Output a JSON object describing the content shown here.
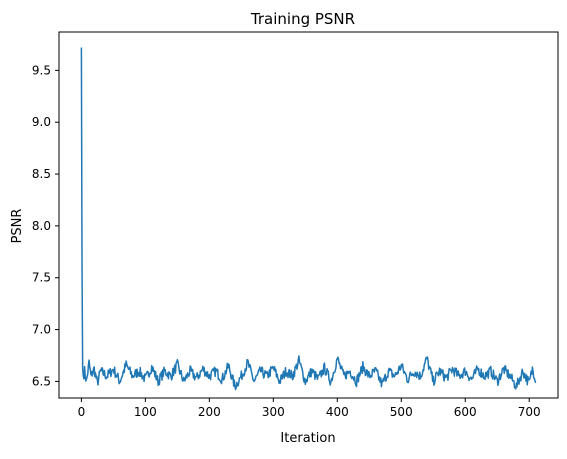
{
  "chart_data": {
    "type": "line",
    "title": "Training PSNR",
    "xlabel": "Iteration",
    "ylabel": "PSNR",
    "xlim": [
      -35,
      745
    ],
    "ylim": [
      6.34,
      9.87
    ],
    "x_ticks": [
      0,
      100,
      200,
      300,
      400,
      500,
      600,
      700
    ],
    "y_ticks": [
      6.5,
      7.0,
      7.5,
      8.0,
      8.5,
      9.0,
      9.5
    ],
    "x_tick_labels": [
      "0",
      "100",
      "200",
      "300",
      "400",
      "500",
      "600",
      "700"
    ],
    "y_tick_labels": [
      "6.5",
      "7.0",
      "7.5",
      "8.0",
      "8.5",
      "9.0",
      "9.5"
    ],
    "grid": false,
    "legend": "none",
    "series_color": "#1f77b4",
    "series": [
      {
        "points": [
          [
            0,
            9.72
          ],
          [
            1,
            7.6
          ],
          [
            2,
            6.62
          ],
          [
            3,
            6.55
          ],
          [
            5,
            6.6
          ],
          [
            8,
            6.5
          ],
          [
            12,
            6.68
          ],
          [
            15,
            6.55
          ],
          [
            20,
            6.62
          ],
          [
            25,
            6.48
          ],
          [
            30,
            6.6
          ],
          [
            40,
            6.55
          ],
          [
            50,
            6.62
          ],
          [
            60,
            6.5
          ],
          [
            70,
            6.66
          ],
          [
            80,
            6.55
          ],
          [
            90,
            6.6
          ],
          [
            100,
            6.52
          ],
          [
            110,
            6.64
          ],
          [
            120,
            6.5
          ],
          [
            130,
            6.6
          ],
          [
            140,
            6.55
          ],
          [
            150,
            6.66
          ],
          [
            160,
            6.5
          ],
          [
            170,
            6.6
          ],
          [
            180,
            6.53
          ],
          [
            190,
            6.62
          ],
          [
            200,
            6.55
          ],
          [
            210,
            6.6
          ],
          [
            220,
            6.52
          ],
          [
            230,
            6.65
          ],
          [
            240,
            6.45
          ],
          [
            250,
            6.55
          ],
          [
            260,
            6.68
          ],
          [
            270,
            6.5
          ],
          [
            280,
            6.6
          ],
          [
            290,
            6.55
          ],
          [
            300,
            6.63
          ],
          [
            310,
            6.5
          ],
          [
            320,
            6.6
          ],
          [
            330,
            6.55
          ],
          [
            340,
            6.7
          ],
          [
            350,
            6.5
          ],
          [
            360,
            6.6
          ],
          [
            370,
            6.52
          ],
          [
            380,
            6.63
          ],
          [
            390,
            6.5
          ],
          [
            400,
            6.72
          ],
          [
            410,
            6.55
          ],
          [
            420,
            6.6
          ],
          [
            430,
            6.5
          ],
          [
            440,
            6.64
          ],
          [
            450,
            6.55
          ],
          [
            460,
            6.6
          ],
          [
            470,
            6.47
          ],
          [
            480,
            6.6
          ],
          [
            490,
            6.55
          ],
          [
            500,
            6.65
          ],
          [
            510,
            6.52
          ],
          [
            520,
            6.6
          ],
          [
            530,
            6.55
          ],
          [
            540,
            6.72
          ],
          [
            550,
            6.5
          ],
          [
            560,
            6.6
          ],
          [
            570,
            6.53
          ],
          [
            580,
            6.62
          ],
          [
            590,
            6.55
          ],
          [
            600,
            6.6
          ],
          [
            610,
            6.52
          ],
          [
            620,
            6.62
          ],
          [
            630,
            6.55
          ],
          [
            640,
            6.6
          ],
          [
            650,
            6.5
          ],
          [
            660,
            6.62
          ],
          [
            670,
            6.55
          ],
          [
            680,
            6.45
          ],
          [
            690,
            6.6
          ],
          [
            700,
            6.48
          ],
          [
            705,
            6.62
          ],
          [
            710,
            6.53
          ]
        ],
        "noise_amplitude": 0.05
      }
    ]
  }
}
